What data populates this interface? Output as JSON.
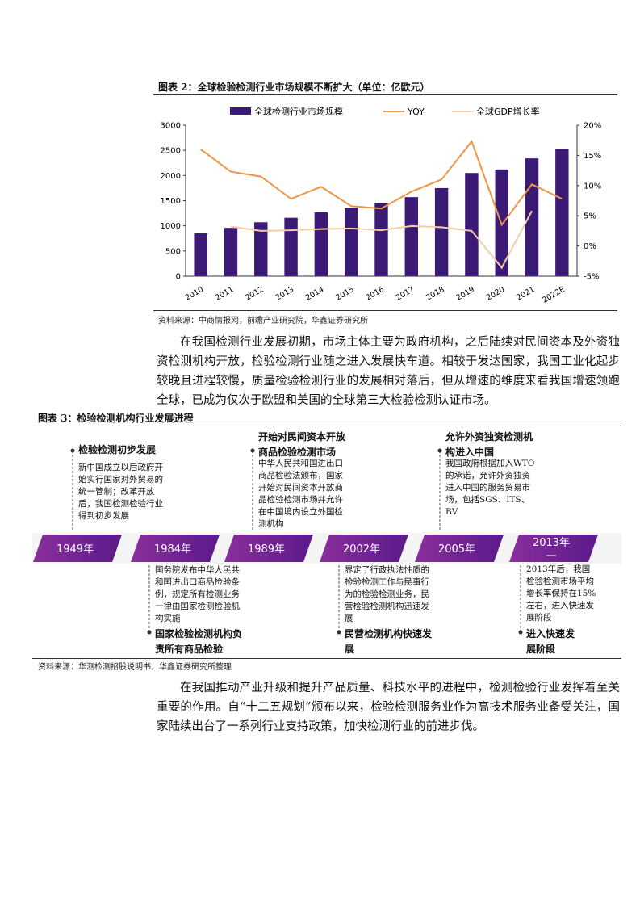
{
  "figure2": {
    "title": "图表 2：全球检验检测行业市场规模不断扩大（单位：亿欧元）",
    "source": "资料来源：中商情报网，前瞻产业研究院，华鑫证券研究所"
  },
  "chart_data": {
    "type": "bar-line",
    "categories": [
      "2010",
      "2011",
      "2012",
      "2013",
      "2014",
      "2015",
      "2016",
      "2017",
      "2018",
      "2019",
      "2020",
      "2021",
      "2022E"
    ],
    "series": [
      {
        "name": "全球检测行业市场规模",
        "type": "bar",
        "color": "#3b1a76",
        "values": [
          850,
          960,
          1070,
          1160,
          1270,
          1360,
          1450,
          1570,
          1750,
          2050,
          2120,
          2340,
          2530
        ]
      },
      {
        "name": "YOY",
        "type": "line",
        "axis": "y2",
        "color": "#ef9545",
        "values": [
          16,
          12.3,
          11.5,
          7.8,
          9.8,
          6.6,
          6.2,
          9,
          11,
          17.3,
          3.5,
          10.2,
          7.8
        ]
      },
      {
        "name": "全球GDP增长率",
        "type": "line",
        "axis": "y2",
        "color": "#f6cba9",
        "values": [
          null,
          3.2,
          2.5,
          2.6,
          2.8,
          2.9,
          2.6,
          3.3,
          3.1,
          2.5,
          -3.6,
          5.8,
          null
        ]
      }
    ],
    "ylim": [
      0,
      3000
    ],
    "yticks": [
      0,
      500,
      1000,
      1500,
      2000,
      2500,
      3000
    ],
    "y2lim": [
      -5,
      20
    ],
    "y2ticks": [
      {
        "value": -5,
        "label": "-5%"
      },
      {
        "value": 0,
        "label": "0%"
      },
      {
        "value": 5,
        "label": "5%"
      },
      {
        "value": 10,
        "label": "10%"
      },
      {
        "value": 15,
        "label": "15%"
      },
      {
        "value": 20,
        "label": "20%"
      }
    ],
    "legend": "top"
  },
  "paragraph1": "在我国检测行业发展初期，市场主体主要为政府机构，之后陆续对民间资本及外资独资检测机构开放，检验检测行业随之进入发展快车道。相较于发达国家，我国工业化起步较晚且进程较慢，质量检验检测行业的发展相对落后，但从增速的维度来看我国增速领跑全球，已成为仅次于欧盟和美国的全球第三大检验检测认证市场。",
  "figure3": {
    "title": "图表 3：检验检测机构行业发展进程",
    "source": "资料来源：华测检测招股说明书，华鑫证券研究所整理",
    "milestones": [
      {
        "year": "1949年",
        "heading": "检验检测初步发展",
        "text": "新中国成立以后政府开始实行国家对外贸易的统一管制；改革开放后，我国检测检验行业得到初步发展"
      },
      {
        "year": "1984年",
        "heading": "国家检验检测机构负责所有商品检验",
        "text": "国务院发布中华人民共和国进出口商品检验条例，规定所有检测业务一律由国家检测检验机构实施"
      },
      {
        "year": "1989年",
        "heading": "开始对民间资本开放商品检验检测市场",
        "text": "中华人民共和国进出口商品检验法颁布，国家开始对民间资本开放商品检验检测市场并允许在中国境内设立外国检测机构"
      },
      {
        "year": "2002年",
        "heading": "民营检测机构快速发展",
        "text": "界定了行政执法性质的检验检测工作与民事行为的检验检测业务，民营检验检测机构迅速发展"
      },
      {
        "year": "2005年",
        "heading": "允许外资独资检测机构进入中国",
        "text": "我国政府根据加入WTO的承诺，允许外资独资进入中国的服务贸易市场，包括SGS、ITS、BV"
      },
      {
        "year": "2013年",
        "heading": "进入快速发展阶段",
        "text": "2013年后，我国检验检测市场平均增长率保持在15%左右，进入快速发展阶段"
      }
    ]
  },
  "paragraph2": "在我国推动产业升级和提升产品质量、科技水平的进程中，检测检验行业发挥着至关重要的作用。自“十二五规划”颁布以来，检验检测服务业作为高技术服务业备受关注，国家陆续出台了一系列行业支持政策，加快检测行业的前进步伐。"
}
